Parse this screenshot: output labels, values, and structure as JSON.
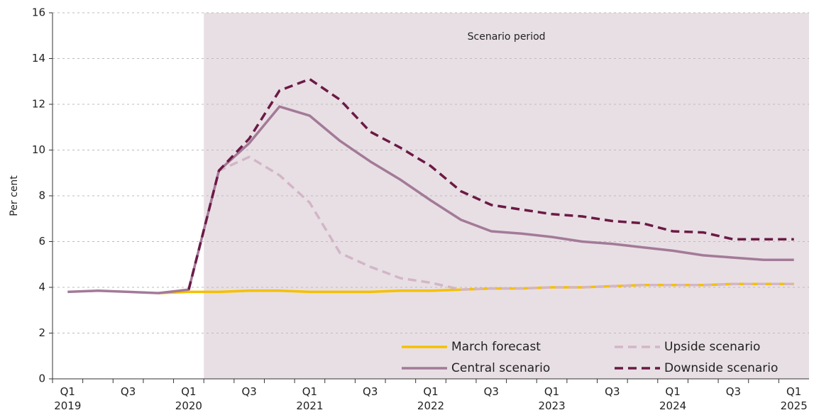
{
  "chart_data": {
    "type": "line",
    "y_label": "Per cent",
    "shaded_region": {
      "label": "Scenario period",
      "start": 4.5,
      "end": 24.5,
      "color": "#e8dfe4"
    },
    "categories": [
      "Q1 2019",
      null,
      "Q3",
      null,
      "Q1 2020",
      null,
      "Q3",
      null,
      "Q1 2021",
      null,
      "Q3",
      null,
      "Q1 2022",
      null,
      "Q3",
      null,
      "Q1 2023",
      null,
      "Q3",
      null,
      "Q1 2024",
      null,
      "Q3",
      null,
      "Q1 2025"
    ],
    "xlim": [
      -0.5,
      24.5
    ],
    "ylim": [
      0,
      16
    ],
    "yticks": [
      0,
      2,
      4,
      6,
      8,
      10,
      12,
      14,
      16
    ],
    "grid": true,
    "series": [
      {
        "name": "March forecast",
        "color": "#f5c000",
        "dash": false,
        "values": [
          null,
          null,
          null,
          3.75,
          3.8,
          3.8,
          3.85,
          3.85,
          3.8,
          3.8,
          3.8,
          3.85,
          3.85,
          3.9,
          3.95,
          3.95,
          4.0,
          4.0,
          4.05,
          4.1,
          4.1,
          4.1,
          4.15,
          4.15,
          4.15
        ]
      },
      {
        "name": "Central scenario",
        "color": "#a37a98",
        "dash": false,
        "values": [
          3.8,
          3.85,
          3.8,
          3.75,
          3.9,
          9.1,
          10.3,
          11.9,
          11.5,
          10.4,
          9.5,
          8.7,
          7.8,
          6.95,
          6.45,
          6.35,
          6.2,
          6.0,
          5.9,
          5.75,
          5.6,
          5.4,
          5.3,
          5.2,
          5.2
        ]
      },
      {
        "name": "Upside scenario",
        "color": "#d2b6c6",
        "dash": true,
        "values": [
          null,
          null,
          null,
          null,
          3.9,
          9.1,
          9.7,
          8.9,
          7.7,
          5.5,
          4.9,
          4.4,
          4.2,
          3.9,
          3.95,
          3.95,
          4.0,
          4.0,
          4.05,
          4.1,
          4.1,
          4.1,
          4.15,
          4.15,
          4.15
        ]
      },
      {
        "name": "Downside scenario",
        "color": "#6b1a45",
        "dash": true,
        "values": [
          null,
          null,
          null,
          null,
          3.9,
          9.1,
          10.5,
          12.6,
          13.1,
          12.2,
          10.8,
          10.1,
          9.3,
          8.2,
          7.6,
          7.4,
          7.2,
          7.1,
          6.9,
          6.8,
          6.45,
          6.4,
          6.1,
          6.1,
          6.1
        ]
      }
    ]
  }
}
